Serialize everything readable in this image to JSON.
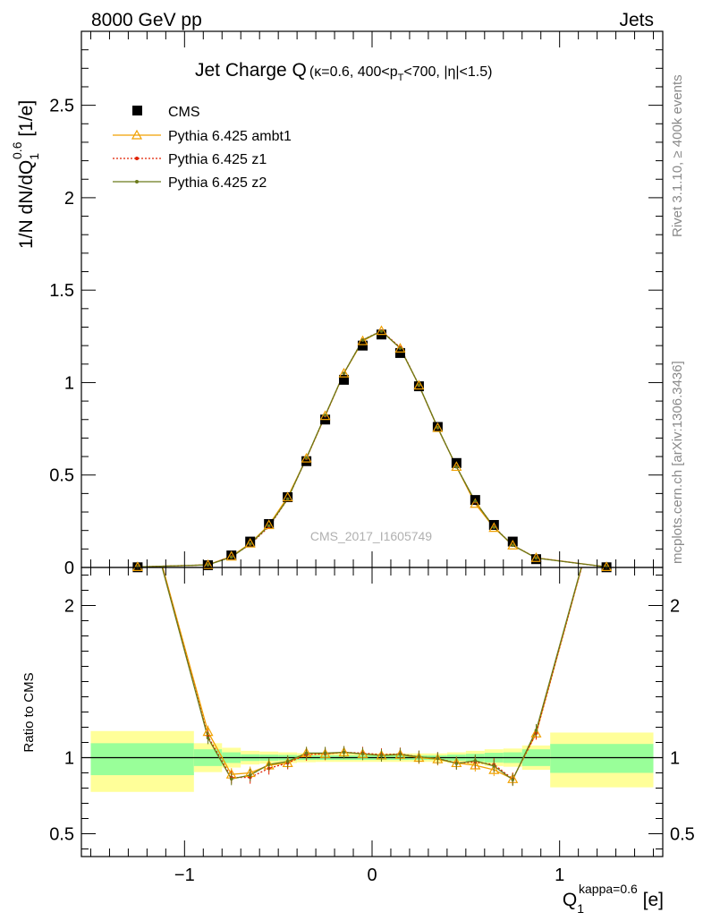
{
  "header": {
    "left": "8000 GeV pp",
    "right": "Jets"
  },
  "side_labels": {
    "rivet": "Rivet 3.1.10, ≥ 400k events",
    "mcplots": "mcplots.cern.ch [arXiv:1306.3436]"
  },
  "chart_data": [
    {
      "type": "scatter",
      "title": "Jet Charge Q",
      "title_cuts": "(κ=0.6, 400<p",
      "title_cuts_sub": "T",
      "title_cuts_tail": "<700, |η|<1.5)",
      "ylabel": "1/N dN/dQ",
      "ylabel_sub": "1",
      "ylabel_sup": "0.6",
      "ylabel_unit": " [1/e]",
      "watermark": "CMS_2017_I1605749",
      "xlim": [
        -1.55,
        1.55
      ],
      "ylim": [
        0,
        2.9
      ],
      "yticks": [
        0,
        0.5,
        1,
        1.5,
        2,
        2.5
      ],
      "ytick_labels": [
        "0",
        "0.5",
        "1",
        "1.5",
        "2",
        "2.5"
      ],
      "x": [
        -1.25,
        -0.875,
        -0.75,
        -0.65,
        -0.55,
        -0.45,
        -0.35,
        -0.25,
        -0.15,
        -0.05,
        0.05,
        0.15,
        0.25,
        0.35,
        0.45,
        0.55,
        0.65,
        0.75,
        0.875,
        1.25
      ],
      "series": [
        {
          "name": "CMS",
          "color": "#000000",
          "values": [
            0.001,
            0.012,
            0.065,
            0.14,
            0.235,
            0.38,
            0.575,
            0.8,
            1.015,
            1.2,
            1.26,
            1.16,
            0.98,
            0.76,
            0.565,
            0.365,
            0.23,
            0.14,
            0.045,
            0.001
          ]
        },
        {
          "name": "Pythia 6.425 ambt1",
          "color": "#f0a000",
          "values": [
            0.003,
            0.014,
            0.06,
            0.13,
            0.23,
            0.38,
            0.59,
            0.82,
            1.05,
            1.225,
            1.28,
            1.185,
            0.985,
            0.755,
            0.545,
            0.345,
            0.215,
            0.12,
            0.052,
            0.003
          ]
        },
        {
          "name": "Pythia 6.425 z1",
          "color": "#e02000",
          "values": [
            0.003,
            0.014,
            0.058,
            0.125,
            0.22,
            0.37,
            0.59,
            0.82,
            1.05,
            1.23,
            1.28,
            1.19,
            0.985,
            0.755,
            0.545,
            0.355,
            0.22,
            0.12,
            0.052,
            0.003
          ]
        },
        {
          "name": "Pythia 6.425 z2",
          "color": "#6b7a1a",
          "values": [
            0.003,
            0.014,
            0.056,
            0.127,
            0.225,
            0.37,
            0.592,
            0.823,
            1.05,
            1.23,
            1.278,
            1.186,
            0.986,
            0.756,
            0.544,
            0.358,
            0.218,
            0.12,
            0.051,
            0.003
          ]
        }
      ]
    },
    {
      "type": "line",
      "ylabel": "Ratio to CMS",
      "xlabel": "Q",
      "xlabel_sub": "1",
      "xlabel_sup": "kappa=0.6",
      "xlabel_unit": " [e]",
      "xlim": [
        -1.55,
        1.55
      ],
      "ylim": [
        0.35,
        2.25
      ],
      "xticks": [
        -1,
        0,
        1
      ],
      "xtick_labels": [
        "−1",
        "0",
        "1"
      ],
      "yticks": [
        0.5,
        1,
        2
      ],
      "ytick_labels": [
        "0.5",
        "1",
        "2"
      ],
      "reference": 1,
      "band_edges": [
        -1.5,
        -0.95,
        -0.8,
        -0.7,
        -0.6,
        -0.5,
        -0.4,
        -0.3,
        -0.2,
        -0.1,
        0,
        0.1,
        0.2,
        0.3,
        0.4,
        0.5,
        0.6,
        0.7,
        0.8,
        0.95,
        1.5
      ],
      "band_inner": [
        [
          0.885,
          1.095
        ],
        [
          0.945,
          1.055
        ],
        [
          0.965,
          1.035
        ],
        [
          0.978,
          1.022
        ],
        [
          0.98,
          1.02
        ],
        [
          0.982,
          1.018
        ],
        [
          0.985,
          1.015
        ],
        [
          0.985,
          1.015
        ],
        [
          0.985,
          1.015
        ],
        [
          0.985,
          1.015
        ],
        [
          0.985,
          1.015
        ],
        [
          0.985,
          1.015
        ],
        [
          0.985,
          1.015
        ],
        [
          0.985,
          1.015
        ],
        [
          0.98,
          1.02
        ],
        [
          0.975,
          1.025
        ],
        [
          0.968,
          1.032
        ],
        [
          0.965,
          1.035
        ],
        [
          0.945,
          1.055
        ],
        [
          0.9,
          1.09
        ]
      ],
      "band_outer": [
        [
          0.775,
          1.175
        ],
        [
          0.905,
          1.095
        ],
        [
          0.935,
          1.065
        ],
        [
          0.955,
          1.045
        ],
        [
          0.96,
          1.04
        ],
        [
          0.965,
          1.035
        ],
        [
          0.97,
          1.03
        ],
        [
          0.972,
          1.028
        ],
        [
          0.972,
          1.028
        ],
        [
          0.972,
          1.028
        ],
        [
          0.972,
          1.028
        ],
        [
          0.972,
          1.028
        ],
        [
          0.972,
          1.028
        ],
        [
          0.972,
          1.028
        ],
        [
          0.965,
          1.035
        ],
        [
          0.955,
          1.045
        ],
        [
          0.945,
          1.055
        ],
        [
          0.94,
          1.06
        ],
        [
          0.92,
          1.08
        ],
        [
          0.805,
          1.165
        ]
      ],
      "band_colors": {
        "inner": "#99ff99",
        "outer": "#ffff99"
      },
      "x": [
        -1.25,
        -0.875,
        -0.75,
        -0.65,
        -0.55,
        -0.45,
        -0.35,
        -0.25,
        -0.15,
        -0.05,
        0.05,
        0.15,
        0.25,
        0.35,
        0.45,
        0.55,
        0.65,
        0.75,
        0.875,
        1.25
      ],
      "series": [
        {
          "name": "Pythia 6.425 ambt1",
          "color": "#f0a000",
          "values": [
            3.0,
            1.17,
            0.89,
            0.9,
            0.95,
            0.965,
            1.03,
            1.025,
            1.035,
            1.025,
            1.015,
            1.02,
            1.0,
            0.99,
            0.965,
            0.95,
            0.92,
            0.86,
            1.16,
            3.0
          ]
        },
        {
          "name": "Pythia 6.425 z1",
          "color": "#e02000",
          "values": [
            3.0,
            1.14,
            0.87,
            0.87,
            0.93,
            0.965,
            1.02,
            1.025,
            1.035,
            1.03,
            1.02,
            1.025,
            1.005,
            0.995,
            0.965,
            0.97,
            0.955,
            0.86,
            1.16,
            3.0
          ]
        },
        {
          "name": "Pythia 6.425 z2",
          "color": "#6b7a1a",
          "values": [
            3.0,
            1.13,
            0.86,
            0.885,
            0.955,
            0.975,
            1.03,
            1.03,
            1.035,
            1.025,
            1.015,
            1.022,
            1.005,
            0.995,
            0.962,
            0.98,
            0.945,
            0.855,
            1.18,
            3.0
          ]
        }
      ]
    }
  ]
}
